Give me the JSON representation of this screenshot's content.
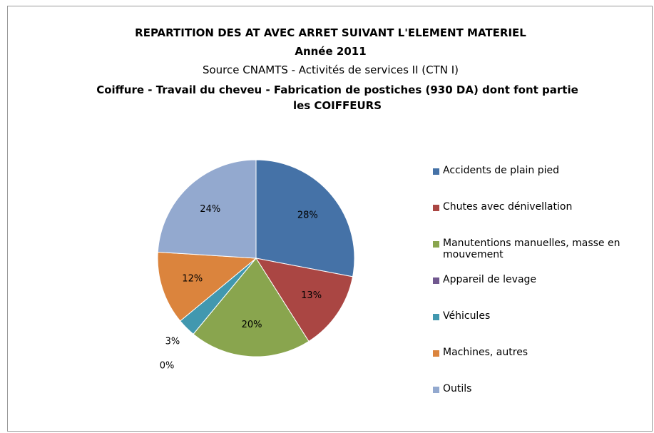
{
  "chart_data": {
    "type": "pie",
    "title": "REPARTITION DES AT AVEC ARRET SUIVANT L'ELEMENT MATERIEL",
    "subtitle": "Année 2011",
    "source": "Source CNAMTS -  Activités de services II (CTN I)",
    "description": "Coiffure - Travail du cheveu - Fabrication de postiches (930 DA) dont font partie les COIFFEURS",
    "categories": [
      "Accidents de plain pied",
      "Chutes avec dénivellation",
      "Manutentions manuelles, masse en mouvement",
      "Appareil de levage",
      "Véhicules",
      "Machines, autres",
      "Outils"
    ],
    "values": [
      28,
      13,
      20,
      0,
      3,
      12,
      24
    ],
    "value_labels": [
      "28%",
      "13%",
      "20%",
      "0%",
      "3%",
      "12%",
      "24%"
    ],
    "colors": [
      "#4572a7",
      "#aa4643",
      "#89a54e",
      "#71588f",
      "#4198af",
      "#db843d",
      "#93a9cf"
    ],
    "legend": "right"
  }
}
